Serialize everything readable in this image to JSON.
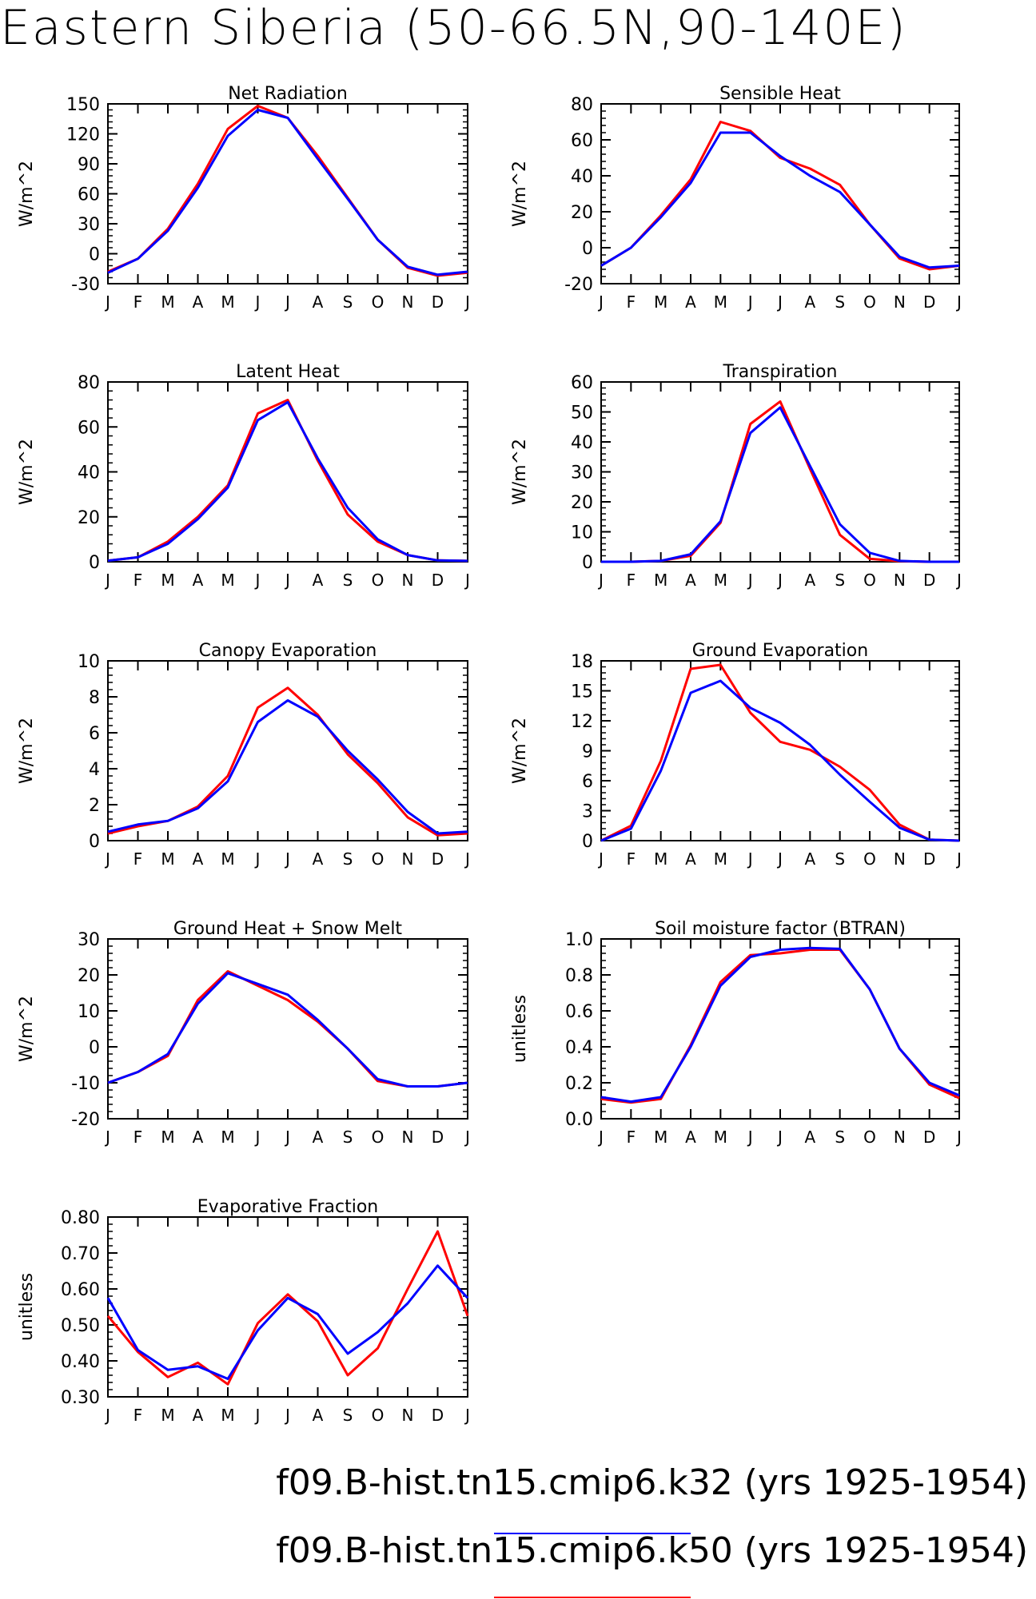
{
  "title": "Eastern Siberia (50-66.5N,90-140E)",
  "months": [
    "J",
    "F",
    "M",
    "A",
    "M",
    "J",
    "J",
    "A",
    "S",
    "O",
    "N",
    "D",
    "J"
  ],
  "colors": {
    "k32": "#0000ff",
    "k50": "#ff0000"
  },
  "legend": [
    {
      "label": "f09.B-hist.tn15.cmip6.k32 (yrs 1925-1954)",
      "color": "#0000ff"
    },
    {
      "label": "f09.B-hist.tn15.cmip6.k50 (yrs 1925-1954)",
      "color": "#ff0000"
    }
  ],
  "chart_data": [
    {
      "type": "line",
      "title": "Net Radiation",
      "ylabel": "W/m^2",
      "ylim": [
        -30,
        150
      ],
      "yticks": [
        "-30",
        "0",
        "30",
        "60",
        "90",
        "120",
        "150"
      ],
      "categories": [
        "J",
        "F",
        "M",
        "A",
        "M",
        "J",
        "J",
        "A",
        "S",
        "O",
        "N",
        "D",
        "J"
      ],
      "series": [
        {
          "name": "f09.B-hist.tn15.cmip6.k32",
          "values": [
            -19,
            -5,
            23,
            66,
            118,
            144,
            136,
            95,
            55,
            14,
            -13,
            -21,
            -18
          ]
        },
        {
          "name": "f09.B-hist.tn15.cmip6.k50",
          "values": [
            -18,
            -5,
            25,
            70,
            125,
            148,
            136,
            98,
            56,
            14,
            -14,
            -22,
            -19
          ]
        }
      ]
    },
    {
      "type": "line",
      "title": "Sensible Heat",
      "ylabel": "W/m^2",
      "ylim": [
        -20,
        80
      ],
      "yticks": [
        "-20",
        "0",
        "20",
        "40",
        "60",
        "80"
      ],
      "categories": [
        "J",
        "F",
        "M",
        "A",
        "M",
        "J",
        "J",
        "A",
        "S",
        "O",
        "N",
        "D",
        "J"
      ],
      "series": [
        {
          "name": "f09.B-hist.tn15.cmip6.k32",
          "values": [
            -10,
            0,
            17,
            36,
            64,
            64,
            51,
            40,
            31,
            13,
            -5,
            -11,
            -10
          ]
        },
        {
          "name": "f09.B-hist.tn15.cmip6.k50",
          "values": [
            -10,
            0,
            18,
            38,
            70,
            65,
            50,
            44,
            35,
            13,
            -6,
            -12,
            -10
          ]
        }
      ]
    },
    {
      "type": "line",
      "title": "Latent Heat",
      "ylabel": "W/m^2",
      "ylim": [
        0,
        80
      ],
      "yticks": [
        "0",
        "20",
        "40",
        "60",
        "80"
      ],
      "categories": [
        "J",
        "F",
        "M",
        "A",
        "M",
        "J",
        "J",
        "A",
        "S",
        "O",
        "N",
        "D",
        "J"
      ],
      "series": [
        {
          "name": "f09.B-hist.tn15.cmip6.k32",
          "values": [
            0.5,
            2,
            8,
            19,
            33,
            63,
            71,
            46,
            24,
            10,
            3,
            0.6,
            0.4
          ]
        },
        {
          "name": "f09.B-hist.tn15.cmip6.k50",
          "values": [
            0.5,
            2,
            9,
            20,
            34,
            66,
            72,
            45,
            21,
            9,
            3,
            0.6,
            0.4
          ]
        }
      ]
    },
    {
      "type": "line",
      "title": "Transpiration",
      "ylabel": "W/m^2",
      "ylim": [
        0,
        60
      ],
      "yticks": [
        "0",
        "10",
        "20",
        "30",
        "40",
        "50",
        "60"
      ],
      "categories": [
        "J",
        "F",
        "M",
        "A",
        "M",
        "J",
        "J",
        "A",
        "S",
        "O",
        "N",
        "D",
        "J"
      ],
      "series": [
        {
          "name": "f09.B-hist.tn15.cmip6.k32",
          "values": [
            0,
            0,
            0.3,
            2.5,
            13.5,
            43,
            51.5,
            32,
            12.5,
            3,
            0.3,
            0,
            0
          ]
        },
        {
          "name": "f09.B-hist.tn15.cmip6.k50",
          "values": [
            0,
            0,
            0.3,
            2,
            13,
            46,
            53.5,
            31,
            9,
            1,
            0.2,
            0,
            0
          ]
        }
      ]
    },
    {
      "type": "line",
      "title": "Canopy Evaporation",
      "ylabel": "W/m^2",
      "ylim": [
        0,
        10
      ],
      "yticks": [
        "0",
        "2",
        "4",
        "6",
        "8",
        "10"
      ],
      "categories": [
        "J",
        "F",
        "M",
        "A",
        "M",
        "J",
        "J",
        "A",
        "S",
        "O",
        "N",
        "D",
        "J"
      ],
      "series": [
        {
          "name": "f09.B-hist.tn15.cmip6.k32",
          "values": [
            0.5,
            0.9,
            1.1,
            1.8,
            3.3,
            6.6,
            7.8,
            6.9,
            5,
            3.4,
            1.6,
            0.4,
            0.5
          ]
        },
        {
          "name": "f09.B-hist.tn15.cmip6.k50",
          "values": [
            0.4,
            0.8,
            1.1,
            1.9,
            3.6,
            7.4,
            8.5,
            7,
            4.8,
            3.2,
            1.3,
            0.3,
            0.4
          ]
        }
      ]
    },
    {
      "type": "line",
      "title": "Ground Evaporation",
      "ylabel": "W/m^2",
      "ylim": [
        0,
        18
      ],
      "yticks": [
        "0",
        "3",
        "6",
        "9",
        "12",
        "15",
        "18"
      ],
      "categories": [
        "J",
        "F",
        "M",
        "A",
        "M",
        "J",
        "J",
        "A",
        "S",
        "O",
        "N",
        "D",
        "J"
      ],
      "series": [
        {
          "name": "f09.B-hist.tn15.cmip6.k32",
          "values": [
            0,
            1.2,
            7,
            14.8,
            16,
            13.3,
            11.8,
            9.6,
            6.6,
            3.9,
            1.3,
            0.1,
            0
          ]
        },
        {
          "name": "f09.B-hist.tn15.cmip6.k50",
          "values": [
            0,
            1.5,
            8,
            17.2,
            17.6,
            12.8,
            9.9,
            9.1,
            7.4,
            5.1,
            1.6,
            0.1,
            0
          ]
        }
      ]
    },
    {
      "type": "line",
      "title": "Ground Heat + Snow Melt",
      "ylabel": "W/m^2",
      "ylim": [
        -20,
        30
      ],
      "yticks": [
        "-20",
        "-10",
        "0",
        "10",
        "20",
        "30"
      ],
      "categories": [
        "J",
        "F",
        "M",
        "A",
        "M",
        "J",
        "J",
        "A",
        "S",
        "O",
        "N",
        "D",
        "J"
      ],
      "series": [
        {
          "name": "f09.B-hist.tn15.cmip6.k32",
          "values": [
            -10,
            -7,
            -2,
            12,
            20.5,
            17.5,
            14.5,
            7.5,
            -0.5,
            -9,
            -11,
            -11,
            -10
          ]
        },
        {
          "name": "f09.B-hist.tn15.cmip6.k50",
          "values": [
            -10,
            -7,
            -2.5,
            13,
            21,
            17,
            13,
            7,
            -0.5,
            -9.5,
            -11,
            -11,
            -10
          ]
        }
      ]
    },
    {
      "type": "line",
      "title": "Soil moisture factor (BTRAN)",
      "ylabel": "unitless",
      "ylim": [
        0,
        1
      ],
      "yticks": [
        "0.0",
        "0.2",
        "0.4",
        "0.6",
        "0.8",
        "1.0"
      ],
      "categories": [
        "J",
        "F",
        "M",
        "A",
        "M",
        "J",
        "J",
        "A",
        "S",
        "O",
        "N",
        "D",
        "J"
      ],
      "series": [
        {
          "name": "f09.B-hist.tn15.cmip6.k32",
          "values": [
            0.12,
            0.095,
            0.12,
            0.4,
            0.74,
            0.9,
            0.94,
            0.95,
            0.945,
            0.72,
            0.39,
            0.2,
            0.13
          ]
        },
        {
          "name": "f09.B-hist.tn15.cmip6.k50",
          "values": [
            0.11,
            0.09,
            0.11,
            0.41,
            0.76,
            0.91,
            0.92,
            0.94,
            0.94,
            0.72,
            0.39,
            0.19,
            0.115
          ]
        }
      ]
    },
    {
      "type": "line",
      "title": "Evaporative Fraction",
      "ylabel": "unitless",
      "ylim": [
        0.3,
        0.8
      ],
      "yticks": [
        "0.30",
        "0.40",
        "0.50",
        "0.60",
        "0.70",
        "0.80"
      ],
      "categories": [
        "J",
        "F",
        "M",
        "A",
        "M",
        "J",
        "J",
        "A",
        "S",
        "O",
        "N",
        "D",
        "J"
      ],
      "series": [
        {
          "name": "f09.B-hist.tn15.cmip6.k32",
          "values": [
            0.575,
            0.43,
            0.375,
            0.385,
            0.35,
            0.485,
            0.575,
            0.53,
            0.42,
            0.48,
            0.56,
            0.665,
            0.575
          ]
        },
        {
          "name": "f09.B-hist.tn15.cmip6.k50",
          "values": [
            0.525,
            0.425,
            0.355,
            0.395,
            0.335,
            0.505,
            0.585,
            0.51,
            0.36,
            0.435,
            0.6,
            0.76,
            0.525
          ]
        }
      ]
    }
  ]
}
